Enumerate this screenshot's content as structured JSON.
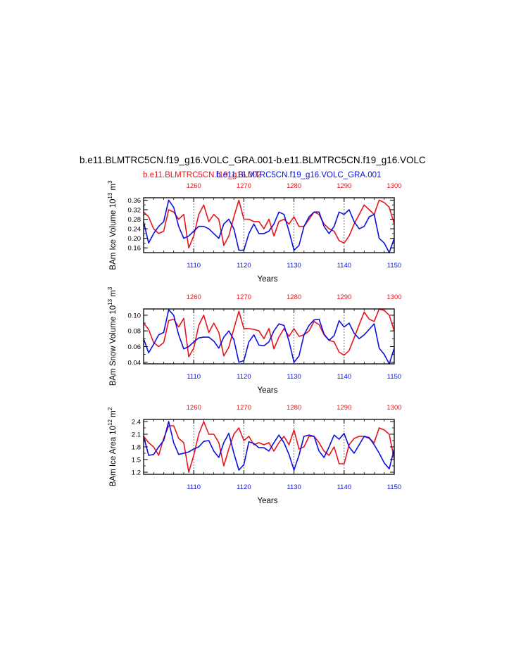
{
  "page": {
    "title": "b.e11.BLMTRC5CN.f19_g16.VOLC_GRA.001-b.e11.BLMTRC5CN.f19_g16.VOLC",
    "legend_red": "b.e11.BLMTRC5CN.f19_g16.002",
    "legend_blue": "b.e11.BLMTRC5CN.f19_g16.VOLC_GRA.001"
  },
  "colors": {
    "case_a": "#e8141c",
    "case_b": "#0a10e0",
    "axis": "#000000",
    "ref_lines": "#555555"
  },
  "chart_data": [
    {
      "type": "line",
      "ylabel": "BAm Ice Volume 10",
      "ylabel_exp": "13",
      "ylabel_unit": " m",
      "ylabel_unit_exp": "3",
      "xlabel": "Years",
      "xlim_bottom": [
        1100,
        1150
      ],
      "xlim_top": [
        1250,
        1300
      ],
      "xticks_bottom": [
        "1110",
        "1120",
        "1130",
        "1140",
        "1150"
      ],
      "xticks_top": [
        "1260",
        "1270",
        "1280",
        "1290",
        "1300"
      ],
      "ylim": [
        0.14,
        0.37
      ],
      "yticks": [
        "0.16",
        "0.20",
        "0.24",
        "0.28",
        "0.32",
        "0.36"
      ],
      "ytick_values": [
        0.16,
        0.2,
        0.24,
        0.28,
        0.32,
        0.36
      ],
      "series": [
        {
          "axis": "top",
          "x": [
            1250,
            1251,
            1252,
            1253,
            1254,
            1255,
            1256,
            1257,
            1258,
            1259,
            1260,
            1261,
            1262,
            1263,
            1264,
            1265,
            1266,
            1267,
            1268,
            1269,
            1270,
            1271,
            1272,
            1273,
            1274,
            1275,
            1276,
            1277,
            1278,
            1279,
            1280,
            1281,
            1282,
            1283,
            1284,
            1285,
            1286,
            1287,
            1288,
            1289,
            1290,
            1291,
            1292,
            1293,
            1294,
            1295,
            1296,
            1297,
            1298,
            1299,
            1300
          ],
          "y": [
            0.31,
            0.29,
            0.24,
            0.22,
            0.23,
            0.32,
            0.31,
            0.28,
            0.3,
            0.16,
            0.21,
            0.3,
            0.34,
            0.27,
            0.3,
            0.28,
            0.17,
            0.21,
            0.29,
            0.36,
            0.28,
            0.28,
            0.27,
            0.27,
            0.24,
            0.28,
            0.21,
            0.27,
            0.28,
            0.26,
            0.29,
            0.25,
            0.25,
            0.28,
            0.31,
            0.3,
            0.26,
            0.24,
            0.23,
            0.19,
            0.18,
            0.21,
            0.26,
            0.3,
            0.34,
            0.32,
            0.3,
            0.36,
            0.35,
            0.33,
            0.26
          ]
        },
        {
          "axis": "bottom",
          "x": [
            1100,
            1101,
            1102,
            1103,
            1104,
            1105,
            1106,
            1107,
            1108,
            1109,
            1110,
            1111,
            1112,
            1113,
            1114,
            1115,
            1116,
            1117,
            1118,
            1119,
            1120,
            1121,
            1122,
            1123,
            1124,
            1125,
            1126,
            1127,
            1128,
            1129,
            1130,
            1131,
            1132,
            1133,
            1134,
            1135,
            1136,
            1137,
            1138,
            1139,
            1140,
            1141,
            1142,
            1143,
            1144,
            1145,
            1146,
            1147,
            1148,
            1149,
            1150
          ],
          "y": [
            0.27,
            0.18,
            0.22,
            0.25,
            0.27,
            0.36,
            0.33,
            0.25,
            0.2,
            0.21,
            0.23,
            0.25,
            0.25,
            0.24,
            0.22,
            0.2,
            0.26,
            0.28,
            0.24,
            0.15,
            0.15,
            0.22,
            0.26,
            0.22,
            0.22,
            0.23,
            0.26,
            0.31,
            0.3,
            0.23,
            0.15,
            0.17,
            0.25,
            0.29,
            0.31,
            0.31,
            0.25,
            0.22,
            0.25,
            0.31,
            0.3,
            0.32,
            0.27,
            0.24,
            0.25,
            0.29,
            0.3,
            0.2,
            0.18,
            0.14,
            0.2
          ]
        }
      ]
    },
    {
      "type": "line",
      "ylabel": "BAm Snow Volume 10",
      "ylabel_exp": "13",
      "ylabel_unit": " m",
      "ylabel_unit_exp": "3",
      "xlabel": "Years",
      "xlim_bottom": [
        1100,
        1150
      ],
      "xlim_top": [
        1250,
        1300
      ],
      "xticks_bottom": [
        "1110",
        "1120",
        "1130",
        "1140",
        "1150"
      ],
      "xticks_top": [
        "1260",
        "1270",
        "1280",
        "1290",
        "1300"
      ],
      "ylim": [
        0.038,
        0.108
      ],
      "yticks": [
        "0.04",
        "0.06",
        "0.08",
        "0.10"
      ],
      "ytick_values": [
        0.04,
        0.06,
        0.08,
        0.1
      ],
      "series": [
        {
          "axis": "top",
          "x": [
            1250,
            1251,
            1252,
            1253,
            1254,
            1255,
            1256,
            1257,
            1258,
            1259,
            1260,
            1261,
            1262,
            1263,
            1264,
            1265,
            1266,
            1267,
            1268,
            1269,
            1270,
            1271,
            1272,
            1273,
            1274,
            1275,
            1276,
            1277,
            1278,
            1279,
            1280,
            1281,
            1282,
            1283,
            1284,
            1285,
            1286,
            1287,
            1288,
            1289,
            1290,
            1291,
            1292,
            1293,
            1294,
            1295,
            1296,
            1297,
            1298,
            1299,
            1300
          ],
          "y": [
            0.09,
            0.082,
            0.065,
            0.06,
            0.065,
            0.093,
            0.095,
            0.085,
            0.096,
            0.047,
            0.058,
            0.087,
            0.1,
            0.078,
            0.09,
            0.078,
            0.048,
            0.059,
            0.083,
            0.105,
            0.083,
            0.083,
            0.082,
            0.08,
            0.07,
            0.083,
            0.057,
            0.072,
            0.083,
            0.073,
            0.083,
            0.073,
            0.075,
            0.08,
            0.092,
            0.088,
            0.075,
            0.068,
            0.066,
            0.053,
            0.049,
            0.055,
            0.071,
            0.088,
            0.104,
            0.095,
            0.092,
            0.108,
            0.106,
            0.1,
            0.08
          ]
        },
        {
          "axis": "bottom",
          "x": [
            1100,
            1101,
            1102,
            1103,
            1104,
            1105,
            1106,
            1107,
            1108,
            1109,
            1110,
            1111,
            1112,
            1113,
            1114,
            1115,
            1116,
            1117,
            1118,
            1119,
            1120,
            1121,
            1122,
            1123,
            1124,
            1125,
            1126,
            1127,
            1128,
            1129,
            1130,
            1131,
            1132,
            1133,
            1134,
            1135,
            1136,
            1137,
            1138,
            1139,
            1140,
            1141,
            1142,
            1143,
            1144,
            1145,
            1146,
            1147,
            1148,
            1149,
            1150
          ],
          "y": [
            0.07,
            0.052,
            0.063,
            0.075,
            0.078,
            0.107,
            0.1,
            0.075,
            0.057,
            0.06,
            0.066,
            0.071,
            0.072,
            0.072,
            0.067,
            0.058,
            0.072,
            0.08,
            0.069,
            0.04,
            0.042,
            0.066,
            0.075,
            0.062,
            0.061,
            0.066,
            0.08,
            0.089,
            0.087,
            0.067,
            0.04,
            0.048,
            0.075,
            0.087,
            0.094,
            0.095,
            0.076,
            0.068,
            0.074,
            0.093,
            0.085,
            0.09,
            0.077,
            0.07,
            0.075,
            0.082,
            0.089,
            0.058,
            0.05,
            0.038,
            0.058
          ]
        }
      ]
    },
    {
      "type": "line",
      "ylabel": "BAm Ice Area 10",
      "ylabel_exp": "12",
      "ylabel_unit": " m",
      "ylabel_unit_exp": "2",
      "xlabel": "Years",
      "xlim_bottom": [
        1100,
        1150
      ],
      "xlim_top": [
        1250,
        1300
      ],
      "xticks_bottom": [
        "1110",
        "1120",
        "1130",
        "1140",
        "1150"
      ],
      "xticks_top": [
        "1260",
        "1270",
        "1280",
        "1290",
        "1300"
      ],
      "ylim": [
        1.15,
        2.45
      ],
      "yticks": [
        "1.2",
        "1.5",
        "1.8",
        "2.1",
        "2.4"
      ],
      "ytick_values": [
        1.2,
        1.5,
        1.8,
        2.1,
        2.4
      ],
      "series": [
        {
          "axis": "top",
          "x": [
            1250,
            1251,
            1252,
            1253,
            1254,
            1255,
            1256,
            1257,
            1258,
            1259,
            1260,
            1261,
            1262,
            1263,
            1264,
            1265,
            1266,
            1267,
            1268,
            1269,
            1270,
            1271,
            1272,
            1273,
            1274,
            1275,
            1276,
            1277,
            1278,
            1279,
            1280,
            1281,
            1282,
            1283,
            1284,
            1285,
            1286,
            1287,
            1288,
            1289,
            1290,
            1291,
            1292,
            1293,
            1294,
            1295,
            1296,
            1297,
            1298,
            1299,
            1300
          ],
          "y": [
            2.05,
            1.9,
            1.8,
            1.6,
            2.0,
            2.3,
            2.3,
            2.0,
            1.9,
            1.2,
            1.6,
            2.1,
            2.4,
            2.1,
            2.1,
            1.9,
            1.35,
            1.75,
            2.1,
            2.25,
            1.95,
            2.05,
            1.85,
            1.9,
            1.85,
            1.9,
            1.7,
            1.9,
            2.05,
            1.85,
            2.2,
            1.75,
            1.8,
            2.05,
            2.05,
            1.9,
            1.7,
            1.6,
            1.8,
            1.4,
            1.4,
            1.85,
            2.0,
            2.05,
            2.05,
            2.0,
            1.9,
            2.25,
            2.2,
            2.1,
            1.5
          ]
        },
        {
          "axis": "bottom",
          "x": [
            1100,
            1101,
            1102,
            1103,
            1104,
            1105,
            1106,
            1107,
            1108,
            1109,
            1110,
            1111,
            1112,
            1113,
            1114,
            1115,
            1116,
            1117,
            1118,
            1119,
            1120,
            1121,
            1122,
            1123,
            1124,
            1125,
            1126,
            1127,
            1128,
            1129,
            1130,
            1131,
            1132,
            1133,
            1134,
            1135,
            1136,
            1137,
            1138,
            1139,
            1140,
            1141,
            1142,
            1143,
            1144,
            1145,
            1146,
            1147,
            1148,
            1149,
            1150
          ],
          "y": [
            2.05,
            1.6,
            1.62,
            1.8,
            1.95,
            2.4,
            1.9,
            1.62,
            1.65,
            1.68,
            1.75,
            1.8,
            1.93,
            1.95,
            1.7,
            1.55,
            1.9,
            2.12,
            1.65,
            1.25,
            1.38,
            1.92,
            1.88,
            1.78,
            1.78,
            1.7,
            1.9,
            2.08,
            1.9,
            1.62,
            1.25,
            1.6,
            2.05,
            2.08,
            2.05,
            1.7,
            1.55,
            1.8,
            2.08,
            1.98,
            2.12,
            1.8,
            1.65,
            1.85,
            2.05,
            2.02,
            1.85,
            1.65,
            1.42,
            1.28,
            1.75
          ]
        }
      ]
    }
  ]
}
